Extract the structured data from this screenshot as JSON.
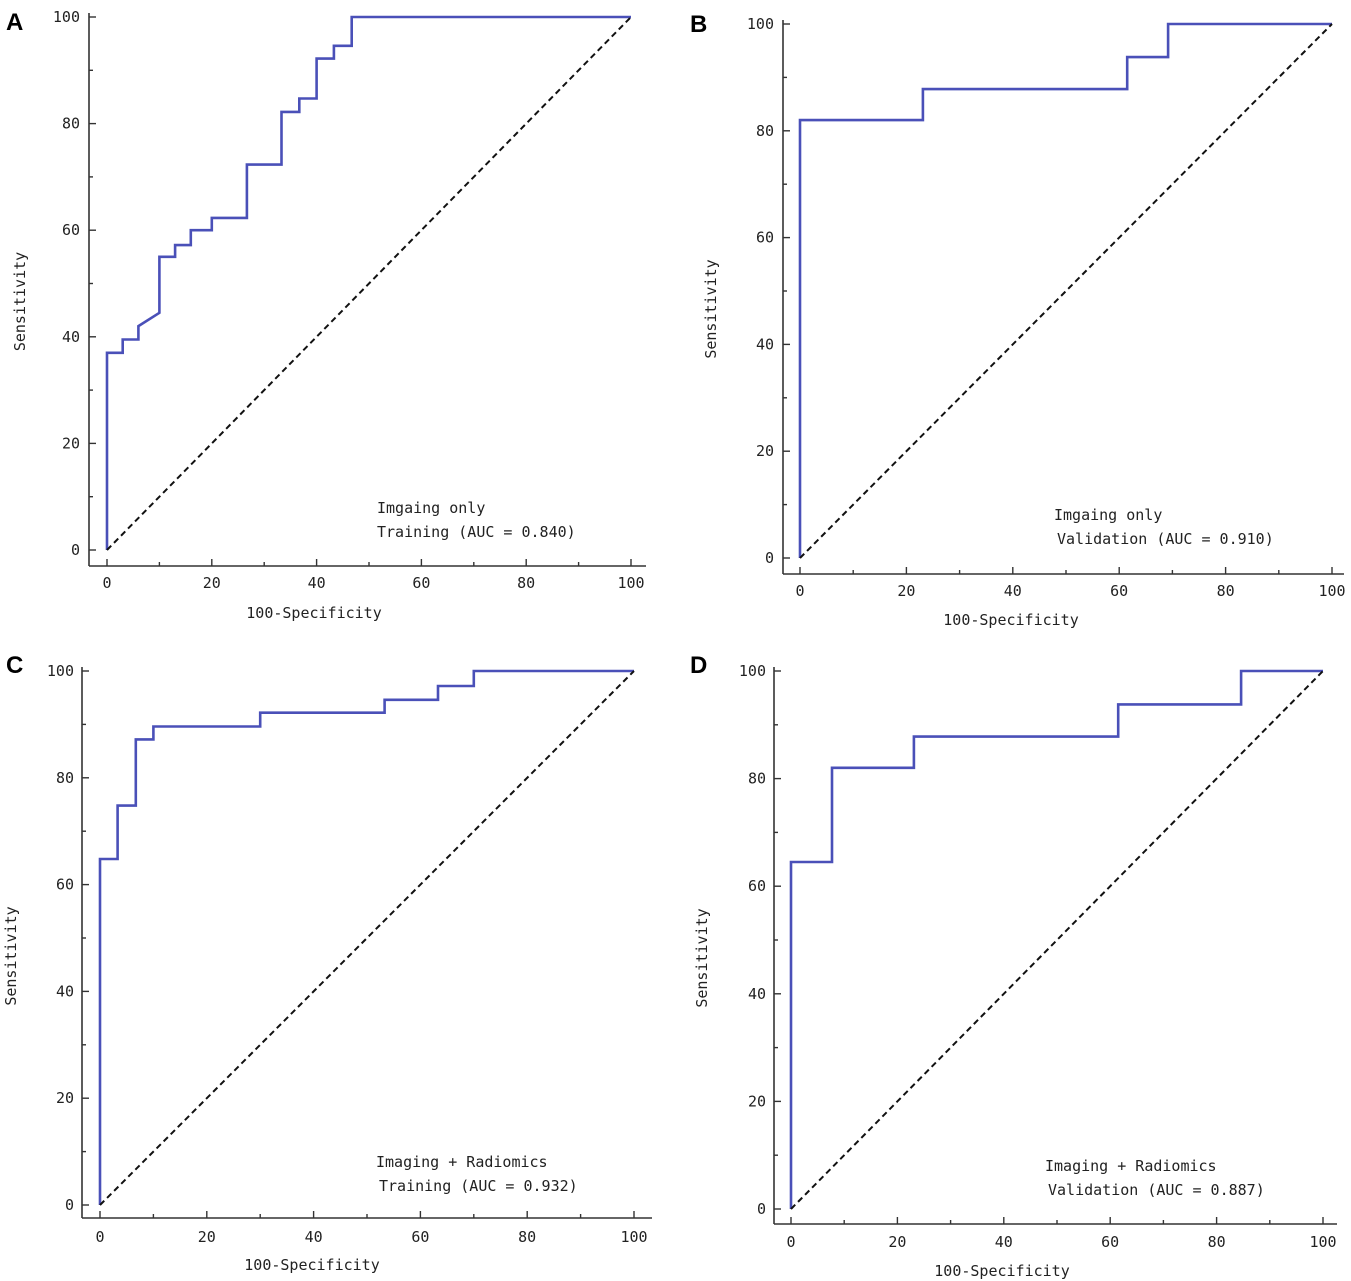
{
  "chart_data": [
    {
      "type": "line",
      "panel": "A",
      "xlabel": "100-Specificity",
      "ylabel": "Sensitivity",
      "xlim": [
        0,
        100
      ],
      "ylim": [
        0,
        100
      ],
      "xticks": [
        "0",
        "20",
        "40",
        "60",
        "80",
        "100"
      ],
      "yticks": [
        "0",
        "20",
        "40",
        "60",
        "80",
        "100"
      ],
      "legend": [
        "Imgaing only",
        "Training (AUC = 0.840)"
      ],
      "series": [
        {
          "name": "ROC",
          "color": "#4a50b8",
          "x": [
            0,
            0,
            3,
            3,
            6,
            6,
            10,
            10,
            13,
            13,
            16,
            16,
            20,
            20,
            26.7,
            26.7,
            33.3,
            33.3,
            36.7,
            36.7,
            40,
            40,
            43.3,
            43.3,
            46.7,
            46.7,
            100
          ],
          "y": [
            0,
            37,
            37,
            39.5,
            39.5,
            42,
            44.5,
            55,
            55,
            57.2,
            57.2,
            60,
            60,
            62.3,
            62.3,
            72.3,
            72.3,
            82.2,
            82.2,
            84.7,
            84.7,
            92.2,
            92.2,
            94.6,
            94.6,
            100,
            100
          ]
        },
        {
          "name": "Reference",
          "color": "#111111",
          "x": [
            0,
            100
          ],
          "y": [
            0,
            100
          ]
        }
      ]
    },
    {
      "type": "line",
      "panel": "B",
      "xlabel": "100-Specificity",
      "ylabel": "Sensitivity",
      "xlim": [
        0,
        100
      ],
      "ylim": [
        0,
        100
      ],
      "xticks": [
        "0",
        "20",
        "40",
        "60",
        "80",
        "100"
      ],
      "yticks": [
        "0",
        "20",
        "40",
        "60",
        "80",
        "100"
      ],
      "legend": [
        "Imgaing only",
        "Validation (AUC = 0.910)"
      ],
      "series": [
        {
          "name": "ROC",
          "color": "#4a50b8",
          "x": [
            0,
            0,
            23.1,
            23.1,
            61.5,
            61.5,
            69.2,
            69.2,
            100
          ],
          "y": [
            0,
            82,
            82,
            87.8,
            87.8,
            93.8,
            93.8,
            100,
            100
          ]
        },
        {
          "name": "Reference",
          "color": "#111111",
          "x": [
            0,
            100
          ],
          "y": [
            0,
            100
          ]
        }
      ]
    },
    {
      "type": "line",
      "panel": "C",
      "xlabel": "100-Specificity",
      "ylabel": "Sensitivity",
      "xlim": [
        0,
        100
      ],
      "ylim": [
        0,
        100
      ],
      "xticks": [
        "0",
        "20",
        "40",
        "60",
        "80",
        "100"
      ],
      "yticks": [
        "0",
        "20",
        "40",
        "60",
        "80",
        "100"
      ],
      "legend": [
        "Imaging + Radiomics",
        "Training (AUC = 0.932)"
      ],
      "series": [
        {
          "name": "ROC",
          "color": "#4a50b8",
          "x": [
            0,
            0,
            3.3,
            3.3,
            6.7,
            6.7,
            10,
            10,
            30,
            30,
            53.3,
            53.3,
            63.3,
            63.3,
            70,
            70,
            100
          ],
          "y": [
            0,
            64.8,
            64.8,
            74.8,
            74.8,
            87.2,
            87.2,
            89.6,
            89.6,
            92.2,
            92.2,
            94.6,
            94.6,
            97.2,
            97.2,
            100,
            100
          ]
        },
        {
          "name": "Reference",
          "color": "#111111",
          "x": [
            0,
            100
          ],
          "y": [
            0,
            100
          ]
        }
      ]
    },
    {
      "type": "line",
      "panel": "D",
      "xlabel": "100-Specificity",
      "ylabel": "Sensitivity",
      "xlim": [
        0,
        100
      ],
      "ylim": [
        0,
        100
      ],
      "xticks": [
        "0",
        "20",
        "40",
        "60",
        "80",
        "100"
      ],
      "yticks": [
        "0",
        "20",
        "40",
        "60",
        "80",
        "100"
      ],
      "legend": [
        "Imaging + Radiomics",
        "Validation (AUC = 0.887)"
      ],
      "series": [
        {
          "name": "ROC",
          "color": "#4a50b8",
          "x": [
            0,
            0,
            7.7,
            7.7,
            23.1,
            23.1,
            61.5,
            61.5,
            84.6,
            84.6,
            100
          ],
          "y": [
            0,
            64.5,
            64.5,
            82,
            82,
            87.8,
            87.8,
            93.8,
            93.8,
            100,
            100
          ]
        },
        {
          "name": "Reference",
          "color": "#111111",
          "x": [
            0,
            100
          ],
          "y": [
            0,
            100
          ]
        }
      ]
    }
  ]
}
